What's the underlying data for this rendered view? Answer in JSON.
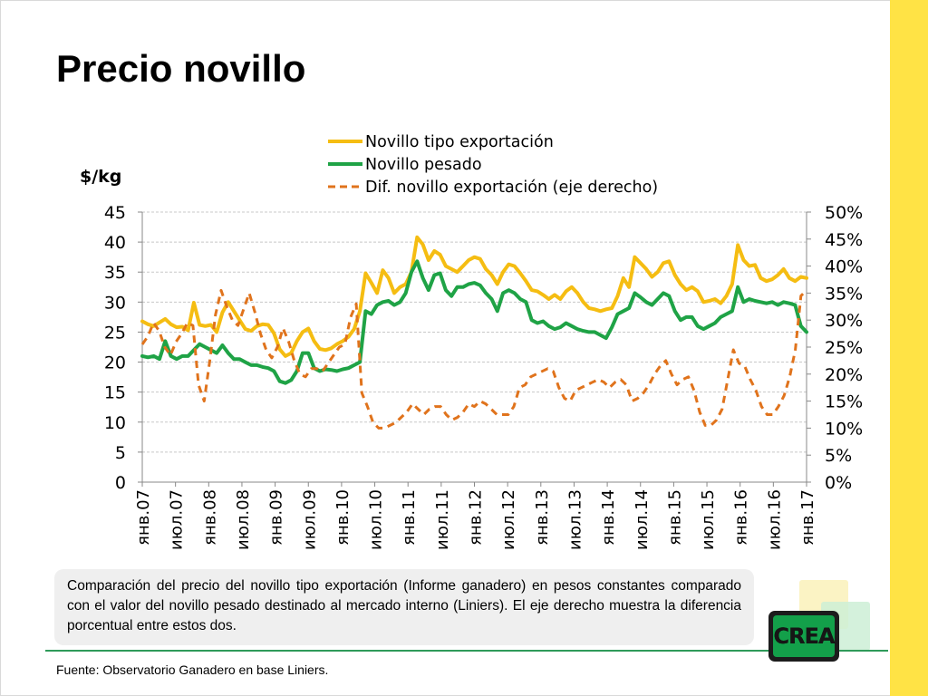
{
  "slide": {
    "title": "Precio novillo",
    "caption": "Comparación del precio del novillo tipo  exportación (Informe ganadero) en pesos constantes comparado con el valor del novillo pesado destinado al mercado interno (Liniers). El eje derecho muestra la diferencia porcentual entre estos dos.",
    "source": "Fuente: Observatorio Ganadero en base Liniers.",
    "logo_text": "CREA"
  },
  "colors": {
    "accent_yellow": "#ffe345",
    "logo_green": "#13a04a",
    "logo_yellow": "#f2d51a",
    "rule_green": "#2f9a5a",
    "square_yellow": "#fbf3c4",
    "square_green": "#cdeed6"
  },
  "chart_data": {
    "type": "line",
    "ylabel": "$/kg",
    "xlabel": "",
    "ylim": [
      0,
      45
    ],
    "y_ticks": [
      "0",
      "5",
      "10",
      "15",
      "20",
      "25",
      "30",
      "35",
      "40",
      "45"
    ],
    "y2lim": [
      0,
      50
    ],
    "y2_ticks": [
      "0%",
      "5%",
      "10%",
      "15%",
      "20%",
      "25%",
      "30%",
      "35%",
      "40%",
      "45%",
      "50%"
    ],
    "grid": true,
    "legend": "top-center",
    "x_ticks": [
      "янв.07",
      "июл.07",
      "янв.08",
      "июл.08",
      "янв.09",
      "июл.09",
      "янв.10",
      "июл.10",
      "янв.11",
      "июл.11",
      "янв.12",
      "июл.12",
      "янв.13",
      "июл.13",
      "янв.14",
      "июл.14",
      "янв.15",
      "июл.15",
      "янв.16",
      "июл.16",
      "янв.17"
    ],
    "x_start": "2007-01",
    "x_end": "2017-01",
    "series": [
      {
        "name": "Novillo tipo exportación",
        "axis": "left",
        "color": "#f5bd12",
        "dash": false,
        "values": [
          26.8,
          26.3,
          26.0,
          26.6,
          27.2,
          26.3,
          25.8,
          25.9,
          25.3,
          29.9,
          26.2,
          26.0,
          26.2,
          25.0,
          28.3,
          30.0,
          28.5,
          27.0,
          25.5,
          25.2,
          26.0,
          26.3,
          26.2,
          24.8,
          22.1,
          21.0,
          21.5,
          23.5,
          25.0,
          25.6,
          23.5,
          22.2,
          22.0,
          22.3,
          23.0,
          23.5,
          24.2,
          25.5,
          28.5,
          34.8,
          33.2,
          31.5,
          35.3,
          34.0,
          31.5,
          32.5,
          33.0,
          35.0,
          40.8,
          39.6,
          37.0,
          38.5,
          37.9,
          36.0,
          35.5,
          35.0,
          36.0,
          37.0,
          37.5,
          37.2,
          35.5,
          34.5,
          33.0,
          35.0,
          36.3,
          36.0,
          34.8,
          33.5,
          32.0,
          31.8,
          31.2,
          30.5,
          31.2,
          30.5,
          31.8,
          32.5,
          31.5,
          30.0,
          29.0,
          28.8,
          28.5,
          28.8,
          29.0,
          31.0,
          34.0,
          32.5,
          37.5,
          36.5,
          35.5,
          34.2,
          35.0,
          36.5,
          36.8,
          34.5,
          33.0,
          32.0,
          32.5,
          31.8,
          30.0,
          30.2,
          30.5,
          29.8,
          31.0,
          33.0,
          39.5,
          37.0,
          36.0,
          36.2,
          34.0,
          33.5,
          33.8,
          34.5,
          35.5,
          34.0,
          33.5,
          34.2,
          34.0
        ]
      },
      {
        "name": "Novillo pesado",
        "axis": "left",
        "color": "#1fa346",
        "dash": false,
        "values": [
          21.0,
          20.8,
          21.0,
          20.5,
          23.5,
          21.0,
          20.5,
          21.0,
          21.0,
          22.0,
          23.0,
          22.5,
          22.0,
          21.5,
          22.8,
          21.5,
          20.5,
          20.5,
          20.0,
          19.5,
          19.5,
          19.2,
          19.0,
          18.5,
          16.8,
          16.5,
          17.0,
          18.5,
          21.5,
          21.5,
          19.0,
          18.5,
          18.8,
          18.7,
          18.5,
          18.8,
          19.0,
          19.5,
          20.0,
          28.5,
          28.0,
          29.5,
          30.0,
          30.2,
          29.5,
          30.0,
          31.5,
          35.0,
          36.8,
          34.0,
          32.0,
          34.5,
          34.8,
          32.0,
          31.0,
          32.5,
          32.5,
          33.0,
          33.2,
          32.8,
          31.5,
          30.5,
          28.5,
          31.5,
          32.0,
          31.5,
          30.5,
          30.0,
          27.0,
          26.5,
          26.8,
          26.0,
          25.5,
          25.8,
          26.5,
          26.0,
          25.5,
          25.2,
          25.0,
          25.0,
          24.5,
          24.0,
          25.8,
          28.0,
          28.5,
          29.0,
          31.5,
          30.8,
          30.0,
          29.5,
          30.5,
          31.5,
          31.0,
          28.5,
          27.0,
          27.5,
          27.5,
          26.0,
          25.5,
          26.0,
          26.5,
          27.5,
          28.0,
          28.5,
          32.5,
          30.0,
          30.5,
          30.2,
          30.0,
          29.8,
          30.0,
          29.5,
          30.0,
          29.8,
          29.5,
          26.0,
          25.0
        ]
      },
      {
        "name": "Dif. novillo exportación (eje derecho)",
        "axis": "right",
        "color": "#e0731c",
        "dash": true,
        "values": [
          25.5,
          27.0,
          29.5,
          28.0,
          25.0,
          23.5,
          26.0,
          27.5,
          29.5,
          29.0,
          18.0,
          15.0,
          22.5,
          31.0,
          35.5,
          32.5,
          30.0,
          29.0,
          32.0,
          35.0,
          31.5,
          27.5,
          24.5,
          23.0,
          25.0,
          28.5,
          26.0,
          22.5,
          20.0,
          19.5,
          21.0,
          21.0,
          20.5,
          22.0,
          23.5,
          25.0,
          25.5,
          30.5,
          33.0,
          16.5,
          14.0,
          11.0,
          10.0,
          10.0,
          10.5,
          11.0,
          12.0,
          13.0,
          14.5,
          13.5,
          12.5,
          13.5,
          14.0,
          14.0,
          12.5,
          11.5,
          12.0,
          13.0,
          14.5,
          14.0,
          15.0,
          14.5,
          13.5,
          12.5,
          12.5,
          12.5,
          14.0,
          17.5,
          18.0,
          19.5,
          20.0,
          20.5,
          21.0,
          20.5,
          17.5,
          15.5,
          15.0,
          17.0,
          17.5,
          18.0,
          18.5,
          19.0,
          18.5,
          17.5,
          18.5,
          19.0,
          18.0,
          15.0,
          15.5,
          16.5,
          18.0,
          20.0,
          21.5,
          22.5,
          20.0,
          18.0,
          19.0,
          19.5,
          17.0,
          13.0,
          10.5,
          10.5,
          11.5,
          13.5,
          19.0,
          24.5,
          22.0,
          21.5,
          19.0,
          17.0,
          14.0,
          12.5,
          12.5,
          14.0,
          16.0,
          19.5,
          24.5,
          34.5,
          35.5
        ]
      }
    ]
  }
}
